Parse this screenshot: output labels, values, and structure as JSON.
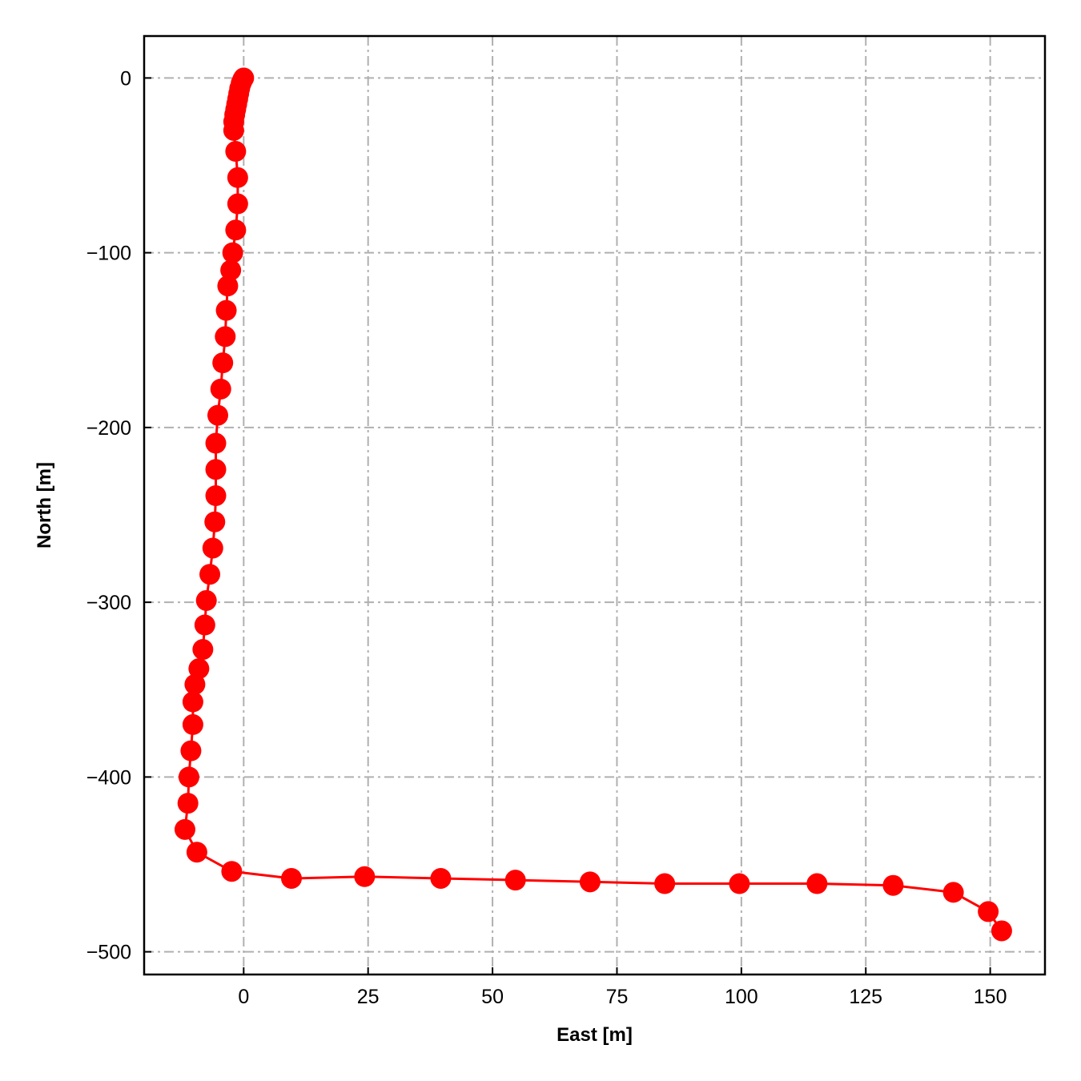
{
  "chart_data": {
    "type": "line",
    "title": "",
    "xlabel": "East [m]",
    "ylabel": "North [m]",
    "xlim": [
      -20,
      161
    ],
    "ylim": [
      -513,
      24
    ],
    "xticks": [
      0,
      25,
      50,
      75,
      100,
      125,
      150
    ],
    "yticks": [
      0,
      -100,
      -200,
      -300,
      -400,
      -500
    ],
    "xtick_labels": [
      "0",
      "25",
      "50",
      "75",
      "100",
      "125",
      "150"
    ],
    "ytick_labels": [
      "0",
      "−100",
      "−200",
      "−300",
      "−400",
      "−500"
    ],
    "grid": true,
    "ticks_direction": "in",
    "series": [
      {
        "color": "#ff0000",
        "marker": "circle",
        "points": [
          [
            0,
            0
          ],
          [
            -0.2,
            -1
          ],
          [
            -0.5,
            -3
          ],
          [
            -0.8,
            -6
          ],
          [
            -1,
            -9
          ],
          [
            -1.2,
            -12
          ],
          [
            -1.4,
            -15
          ],
          [
            -1.6,
            -18
          ],
          [
            -1.8,
            -21
          ],
          [
            -2,
            -25
          ],
          [
            -2,
            -30
          ],
          [
            -1.6,
            -42
          ],
          [
            -1.2,
            -57
          ],
          [
            -1.2,
            -72
          ],
          [
            -1.6,
            -87
          ],
          [
            -2.2,
            -100
          ],
          [
            -2.6,
            -110
          ],
          [
            -3.2,
            -119
          ],
          [
            -3.5,
            -133
          ],
          [
            -3.7,
            -148
          ],
          [
            -4.2,
            -163
          ],
          [
            -4.6,
            -178
          ],
          [
            -5.2,
            -193
          ],
          [
            -5.6,
            -209
          ],
          [
            -5.6,
            -224
          ],
          [
            -5.6,
            -239
          ],
          [
            -5.8,
            -254
          ],
          [
            -6.2,
            -269
          ],
          [
            -6.8,
            -284
          ],
          [
            -7.5,
            -299
          ],
          [
            -7.8,
            -313
          ],
          [
            -8.2,
            -327
          ],
          [
            -9,
            -338
          ],
          [
            -9.8,
            -347
          ],
          [
            -10.2,
            -357
          ],
          [
            -10.2,
            -370
          ],
          [
            -10.6,
            -385
          ],
          [
            -11,
            -400
          ],
          [
            -11.2,
            -415
          ],
          [
            -11.8,
            -430
          ],
          [
            -9.4,
            -443
          ],
          [
            -2.4,
            -454
          ],
          [
            9.6,
            -458
          ],
          [
            24.3,
            -457
          ],
          [
            39.6,
            -458
          ],
          [
            54.6,
            -459
          ],
          [
            69.6,
            -460
          ],
          [
            84.6,
            -461
          ],
          [
            99.6,
            -461
          ],
          [
            115.2,
            -461
          ],
          [
            130.5,
            -462
          ],
          [
            142.6,
            -466
          ],
          [
            149.6,
            -477
          ],
          [
            152.3,
            -488
          ]
        ]
      }
    ]
  }
}
